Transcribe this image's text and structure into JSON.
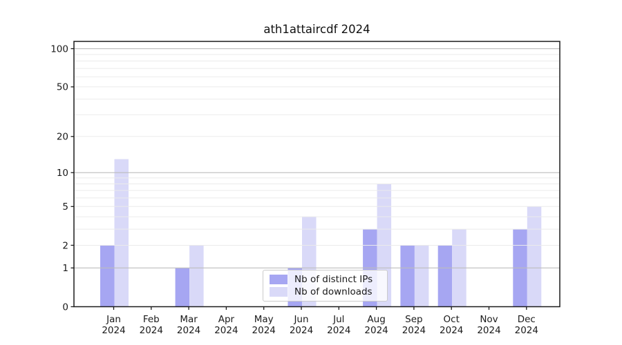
{
  "chart_data": {
    "type": "bar",
    "title": "ath1attaircdf 2024",
    "categories": [
      "Jan 2024",
      "Feb 2024",
      "Mar 2024",
      "Apr 2024",
      "May 2024",
      "Jun 2024",
      "Jul 2024",
      "Aug 2024",
      "Sep 2024",
      "Oct 2024",
      "Nov 2024",
      "Dec 2024"
    ],
    "series": [
      {
        "name": "Nb of distinct IPs",
        "color": "#a6a6f2",
        "values": [
          2,
          0,
          1,
          0,
          0,
          1,
          0,
          3,
          2,
          2,
          0,
          3
        ]
      },
      {
        "name": "Nb of downloads",
        "color": "#d9d9f8",
        "values": [
          13,
          0,
          2,
          0,
          0,
          4,
          0,
          8,
          2,
          3,
          0,
          5
        ]
      }
    ],
    "xlabel": "",
    "ylabel": "",
    "yscale": "log1p",
    "ylim": [
      0,
      114
    ],
    "y_ticks": [
      0,
      1,
      2,
      5,
      10,
      20,
      50,
      100
    ],
    "y_major_gridlines": [
      1,
      10,
      100
    ],
    "y_minor_gridlines": [
      2,
      3,
      4,
      5,
      6,
      7,
      8,
      9,
      20,
      30,
      40,
      50,
      60,
      70,
      80,
      90
    ],
    "grid": true,
    "legend_position": "lower center",
    "colors": {
      "major_grid": "#bcbcbc",
      "minor_grid": "#ebebeb",
      "spine": "#1a1a1a",
      "tick_label": "#1a1a1a"
    }
  }
}
